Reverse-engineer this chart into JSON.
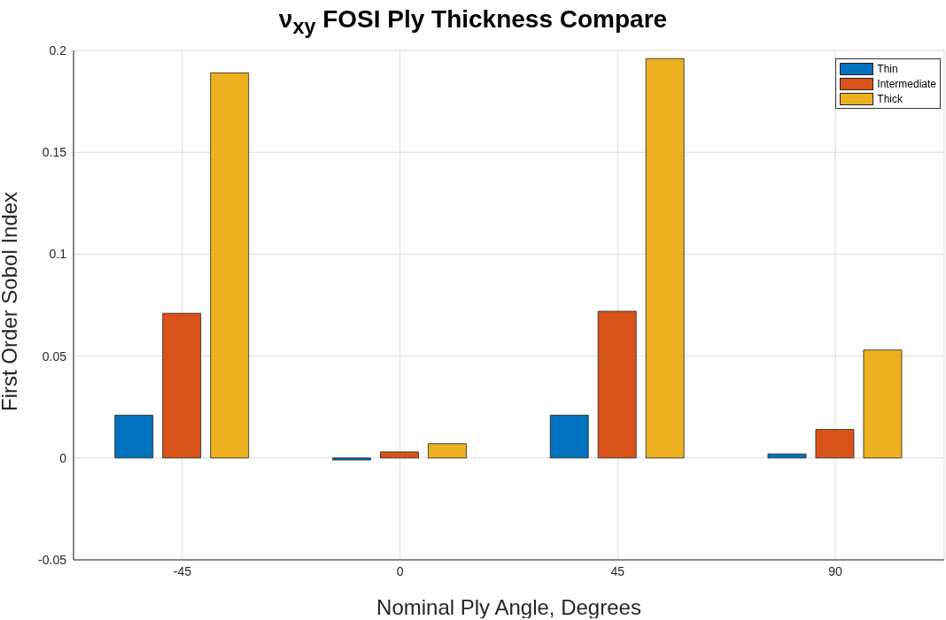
{
  "chart_data": {
    "type": "bar",
    "title": "ν$_{xy}$ FOSI Ply Thickness Compare",
    "xlabel": "Nominal Ply Angle, Degrees",
    "ylabel": "First Order Sobol Index",
    "categories": [
      "-45",
      "0",
      "45",
      "90"
    ],
    "series": [
      {
        "name": "Thin",
        "color": "#0072bd",
        "values": [
          0.021,
          -0.001,
          0.021,
          0.002
        ]
      },
      {
        "name": "Intermediate",
        "color": "#d95319",
        "values": [
          0.071,
          0.003,
          0.072,
          0.014
        ]
      },
      {
        "name": "Thick",
        "color": "#edb120",
        "values": [
          0.189,
          0.007,
          0.196,
          0.053
        ]
      }
    ],
    "ylim": [
      -0.05,
      0.2
    ],
    "yticks": [
      -0.05,
      0,
      0.05,
      0.1,
      0.15,
      0.2
    ],
    "grid": true,
    "legend": "top right"
  }
}
